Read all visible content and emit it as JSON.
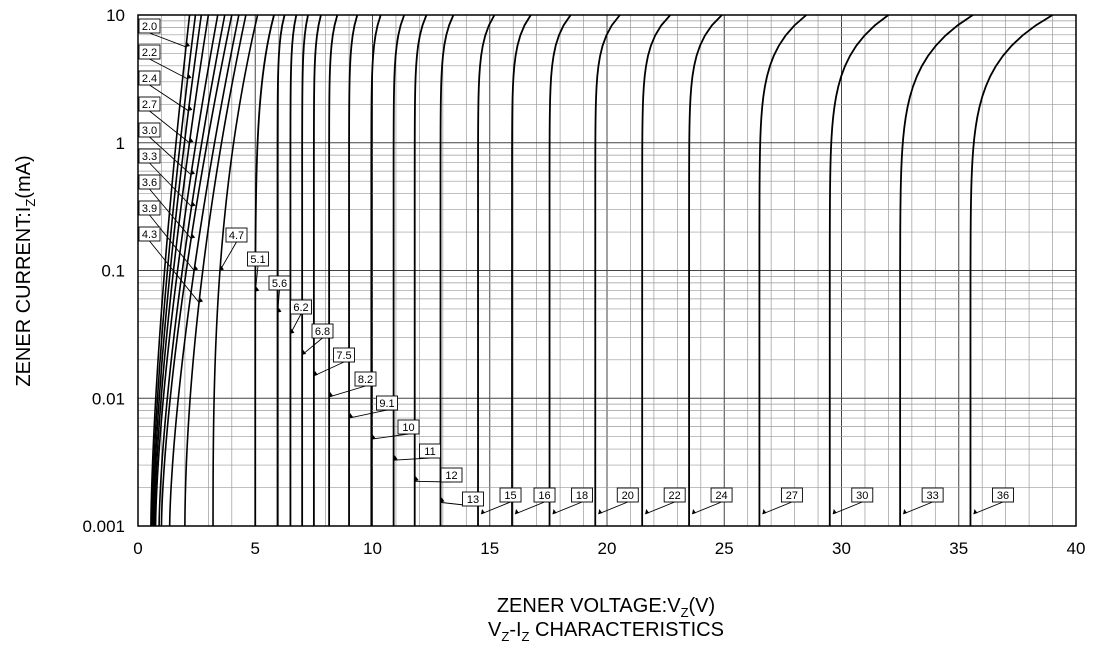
{
  "chart_data": {
    "type": "line",
    "title": "",
    "xlabel": {
      "main": "ZENER VOLTAGE:V",
      "sub": "Z",
      "tail": "(V)"
    },
    "ylabel": {
      "main": "ZENER CURRENT:I",
      "sub": "Z",
      "tail": "(mA)"
    },
    "caption": {
      "p1": "V",
      "s1": "Z",
      "p2": "-I",
      "s2": "Z",
      "p3": " CHARACTERISTICS"
    },
    "xlim": [
      0,
      40
    ],
    "ylim": [
      0.001,
      10
    ],
    "yscale": "log",
    "grid": true,
    "x_ticks": [
      "0",
      "5",
      "10",
      "15",
      "20",
      "25",
      "30",
      "35",
      "40"
    ],
    "y_ticks": [
      "0.001",
      "0.01",
      "0.1",
      "1",
      "10"
    ],
    "series": [
      {
        "label": "2.0",
        "v_low": 0.55,
        "v_high": 2.2
      },
      {
        "label": "2.2",
        "v_low": 0.6,
        "v_high": 2.45
      },
      {
        "label": "2.4",
        "v_low": 0.65,
        "v_high": 2.7
      },
      {
        "label": "2.7",
        "v_low": 0.7,
        "v_high": 3.0
      },
      {
        "label": "3.0",
        "v_low": 0.75,
        "v_high": 3.4
      },
      {
        "label": "3.3",
        "v_low": 0.9,
        "v_high": 3.7
      },
      {
        "label": "3.6",
        "v_low": 1.0,
        "v_high": 4.0
      },
      {
        "label": "3.9",
        "v_low": 1.35,
        "v_high": 4.3
      },
      {
        "label": "4.3",
        "v_low": 2.0,
        "v_high": 4.6
      },
      {
        "label": "4.7",
        "v_low": 3.2,
        "v_high": 5.1
      },
      {
        "label": "5.1",
        "v_low": 5.0,
        "v_high": 5.8
      },
      {
        "label": "5.6",
        "v_low": 5.95,
        "v_high": 6.25
      },
      {
        "label": "6.2",
        "v_low": 6.5,
        "v_high": 6.75
      },
      {
        "label": "6.8",
        "v_low": 7.0,
        "v_high": 7.25
      },
      {
        "label": "7.5",
        "v_low": 7.5,
        "v_high": 7.8
      },
      {
        "label": "8.2",
        "v_low": 8.15,
        "v_high": 8.5
      },
      {
        "label": "9.1",
        "v_low": 9.0,
        "v_high": 9.35
      },
      {
        "label": "10",
        "v_low": 9.95,
        "v_high": 10.35
      },
      {
        "label": "11",
        "v_low": 10.9,
        "v_high": 11.35
      },
      {
        "label": "12",
        "v_low": 11.8,
        "v_high": 12.3
      },
      {
        "label": "13",
        "v_low": 12.9,
        "v_high": 13.45
      },
      {
        "label": "15",
        "v_low": 14.5,
        "v_high": 15.2
      },
      {
        "label": "16",
        "v_low": 15.95,
        "v_high": 16.75
      },
      {
        "label": "18",
        "v_low": 17.55,
        "v_high": 18.45
      },
      {
        "label": "20",
        "v_low": 19.5,
        "v_high": 20.55
      },
      {
        "label": "22",
        "v_low": 21.5,
        "v_high": 22.7
      },
      {
        "label": "24",
        "v_low": 23.5,
        "v_high": 24.9
      },
      {
        "label": "27",
        "v_low": 26.5,
        "v_high": 28.5
      },
      {
        "label": "30",
        "v_low": 29.5,
        "v_high": 32.0
      },
      {
        "label": "33",
        "v_low": 32.5,
        "v_high": 35.6
      },
      {
        "label": "36",
        "v_low": 35.5,
        "v_high": 39.0
      }
    ]
  }
}
